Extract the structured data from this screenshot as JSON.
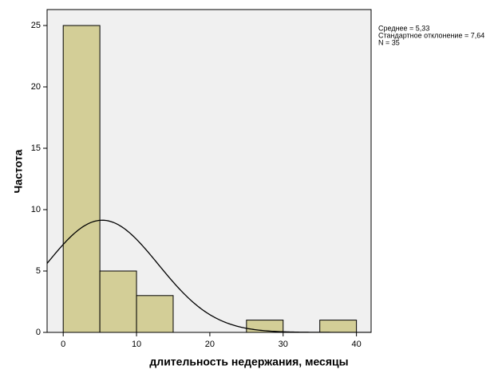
{
  "chart_data": {
    "type": "histogram",
    "bins": [
      0,
      5,
      10,
      15,
      20,
      25,
      30,
      35,
      40
    ],
    "values": [
      25,
      5,
      3,
      0,
      0,
      1,
      0,
      1
    ],
    "color": "#d3ce97",
    "xlabel": "длительность недержания, месяцы",
    "ylabel": "Частота",
    "xlim": [
      -2.2,
      42
    ],
    "ylim": [
      0,
      26.3
    ],
    "xticks": [
      0,
      10,
      20,
      30,
      40
    ],
    "yticks": [
      0,
      5,
      10,
      15,
      20,
      25
    ],
    "normal_curve": {
      "mean": 5.33,
      "sd": 7.64
    },
    "annotations": [
      "Среднее = 5,33",
      "Стандартное отклонение = 7,64",
      "N = 35"
    ]
  }
}
